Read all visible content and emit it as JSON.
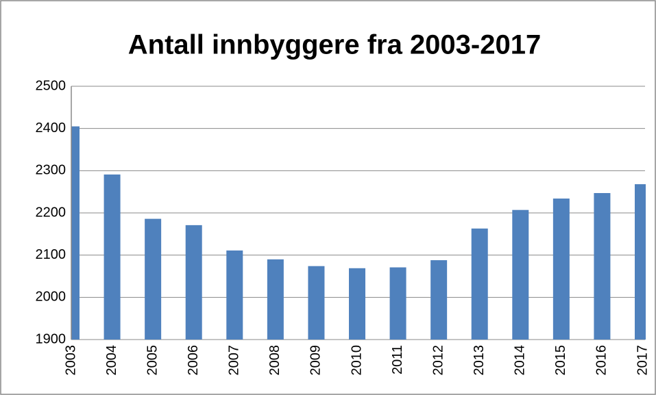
{
  "chart_data": {
    "type": "bar",
    "title": "Antall innbyggere fra 2003-2017",
    "categories": [
      "2003",
      "2004",
      "2005",
      "2006",
      "2007",
      "2008",
      "2009",
      "2010",
      "2011",
      "2012",
      "2013",
      "2014",
      "2015",
      "2016",
      "2017"
    ],
    "values": [
      2405,
      2291,
      2186,
      2171,
      2111,
      2090,
      2074,
      2069,
      2071,
      2088,
      2163,
      2207,
      2234,
      2247,
      2268
    ],
    "color": "#4f81bd",
    "ylim": [
      1900,
      2500
    ],
    "yticks": [
      1900,
      2000,
      2100,
      2200,
      2300,
      2400,
      2500
    ],
    "grid": true
  }
}
